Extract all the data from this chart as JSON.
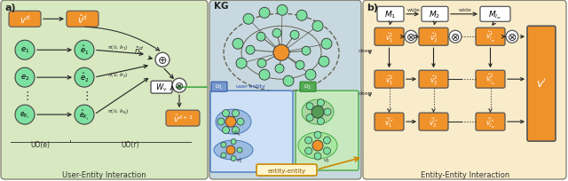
{
  "bg_left": "#d8e8c0",
  "bg_middle": "#c8d8e0",
  "bg_right": "#f8ecca",
  "orange": "#f0922a",
  "green_circle": "#7de0a0",
  "green_dark": "#55bb77",
  "blue_box": "#6699cc",
  "green_box": "#55aa55",
  "white_rect": "#ffffff",
  "arrow_color": "#333333",
  "label_a": "a)",
  "label_b": "b)",
  "label_kg": "KG",
  "label_ue": "User-Entity Interaction",
  "label_ee": "Entity-Entity Interaction",
  "label_uo_e": "UO(e)",
  "label_uo_r": "UO(r)",
  "label_user_entity": "user-entity",
  "label_entity_entity": "entity-entity"
}
